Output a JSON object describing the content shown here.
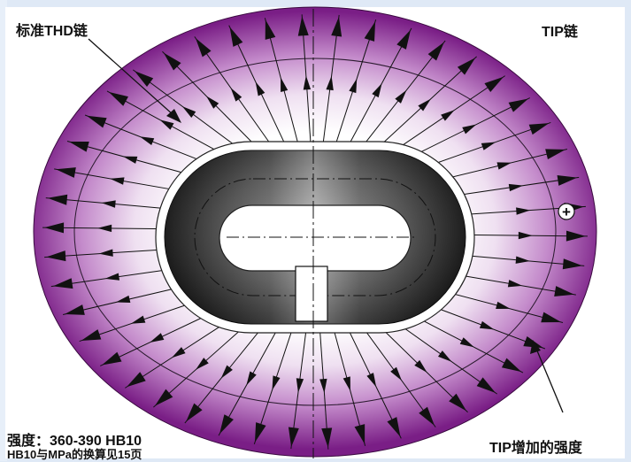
{
  "labels": {
    "standard_chain": "标准THD链",
    "tip_chain": "TIP链",
    "strength": "强度：360-390 HB10",
    "conversion_note": "HB10与MPa的换算见15页",
    "tip_increase": "TIP增加的强度"
  },
  "symbols": {
    "plus": "+"
  },
  "colors": {
    "background": "#dfe9f6",
    "outer_ring": "#7a1e86",
    "inner_fade": "#ffffff",
    "chain_dark": "#141414"
  }
}
